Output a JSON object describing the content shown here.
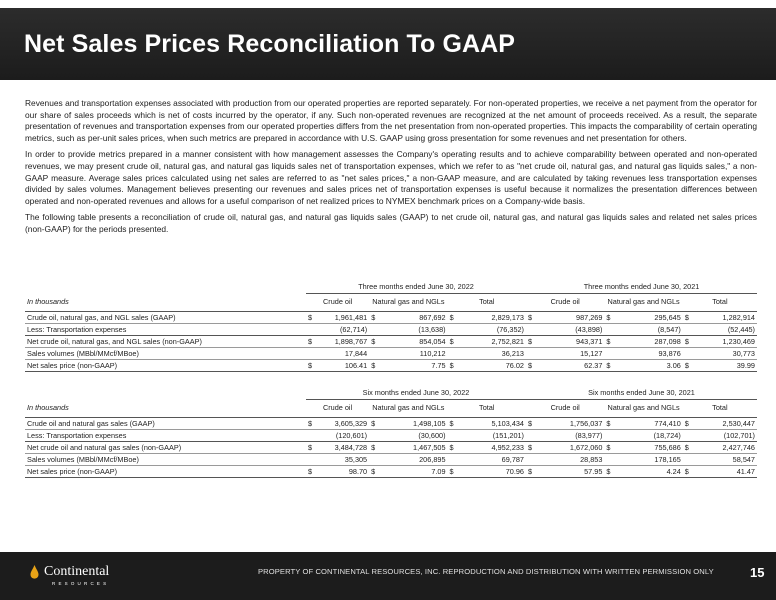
{
  "title": "Net Sales Prices Reconciliation To GAAP",
  "paragraphs": [
    "Revenues and transportation expenses associated with production from our operated properties are reported separately. For non-operated properties, we receive a net payment from the operator for our share of sales proceeds which is net of costs incurred by the operator, if any. Such non-operated revenues are recognized at the net amount of proceeds received. As a result, the separate presentation of revenues and transportation expenses from our operated properties differs from the net presentation from non-operated properties. This impacts the comparability of certain operating metrics, such as per-unit sales prices, when such metrics are prepared in accordance with U.S. GAAP using gross presentation for some revenues and net presentation for others.",
    "In order to provide metrics prepared in a manner consistent with how management assesses the Company's operating results and to achieve comparability between operated and non-operated revenues, we may present crude oil, natural gas, and natural gas liquids sales net of transportation expenses, which we refer to as \"net crude oil, natural gas, and natural gas liquids sales,\" a non-GAAP measure.  Average sales prices calculated using net sales are referred to as \"net sales prices,\" a non-GAAP measure, and are calculated by taking revenues less transportation expenses divided by sales volumes. Management believes presenting our revenues and sales prices net of transportation expenses is useful because it normalizes the presentation differences between operated and non-operated revenues and allows for a useful comparison of net realized prices to NYMEX benchmark prices on a Company-wide basis.",
    "The following table presents a reconciliation of crude oil, natural gas, and natural gas liquids sales (GAAP) to net crude oil, natural gas, and natural gas liquids sales and related net sales prices (non-GAAP) for the periods presented."
  ],
  "tables": [
    {
      "period_left": "Three months ended June 30, 2022",
      "period_right": "Three months ended June 30, 2021",
      "unit_label": "In thousands",
      "columns": [
        "Crude oil",
        "Natural gas and NGLs",
        "Total",
        "Crude oil",
        "Natural gas and NGLs",
        "Total"
      ],
      "rows": [
        {
          "label": "Crude oil, natural gas, and NGL sales (GAAP)",
          "dollar": true,
          "values": [
            "1,961,481",
            "867,692",
            "2,829,173",
            "987,269",
            "295,645",
            "1,282,914"
          ]
        },
        {
          "label": "Less: Transportation expenses",
          "dollar": false,
          "values": [
            "(62,714)",
            "(13,638)",
            "(76,352)",
            "(43,898)",
            "(8,547)",
            "(52,445)"
          ]
        },
        {
          "label": "Net crude oil, natural gas, and NGL sales (non-GAAP)",
          "dollar": true,
          "values": [
            "1,898,767",
            "854,054",
            "2,752,821",
            "943,371",
            "287,098",
            "1,230,469"
          ]
        },
        {
          "label": "Sales volumes (MBbl/MMcf/MBoe)",
          "dollar": false,
          "values": [
            "17,844",
            "110,212",
            "36,213",
            "15,127",
            "93,876",
            "30,773"
          ]
        },
        {
          "label": "Net sales price (non-GAAP)",
          "dollar": true,
          "values": [
            "106.41",
            "7.75",
            "76.02",
            "62.37",
            "3.06",
            "39.99"
          ]
        }
      ]
    },
    {
      "period_left": "Six months ended June 30, 2022",
      "period_right": "Six months ended June 30, 2021",
      "unit_label": "In thousands",
      "columns": [
        "Crude oil",
        "Natural gas and NGLs",
        "Total",
        "Crude oil",
        "Natural gas and NGLs",
        "Total"
      ],
      "rows": [
        {
          "label": "Crude oil and natural gas sales (GAAP)",
          "dollar": true,
          "values": [
            "3,605,329",
            "1,498,105",
            "5,103,434",
            "1,756,037",
            "774,410",
            "2,530,447"
          ]
        },
        {
          "label": "Less: Transportation expenses",
          "dollar": false,
          "values": [
            "(120,601)",
            "(30,600)",
            "(151,201)",
            "(83,977)",
            "(18,724)",
            "(102,701)"
          ]
        },
        {
          "label": "Net crude oil and natural gas sales (non-GAAP)",
          "dollar": true,
          "values": [
            "3,484,728",
            "1,467,505",
            "4,952,233",
            "1,672,060",
            "755,686",
            "2,427,746"
          ]
        },
        {
          "label": "Sales volumes (MBbl/MMcf/MBoe)",
          "dollar": false,
          "values": [
            "35,305",
            "206,895",
            "69,787",
            "28,853",
            "178,165",
            "58,547"
          ]
        },
        {
          "label": "Net sales price (non-GAAP)",
          "dollar": true,
          "values": [
            "98.70",
            "7.09",
            "70.96",
            "57.95",
            "4.24",
            "41.47"
          ]
        }
      ]
    }
  ],
  "footer": {
    "logo_name": "Continental",
    "logo_sub": "RESOURCES",
    "notice": "PROPERTY OF CONTINENTAL RESOURCES, INC. REPRODUCTION AND DISTRIBUTION WITH WRITTEN PERMISSION ONLY",
    "page_number": "15"
  },
  "colors": {
    "title_bar": "#1c1c1c",
    "footer_bar": "#1c1c1c",
    "logo_drop": "#e8a317"
  }
}
